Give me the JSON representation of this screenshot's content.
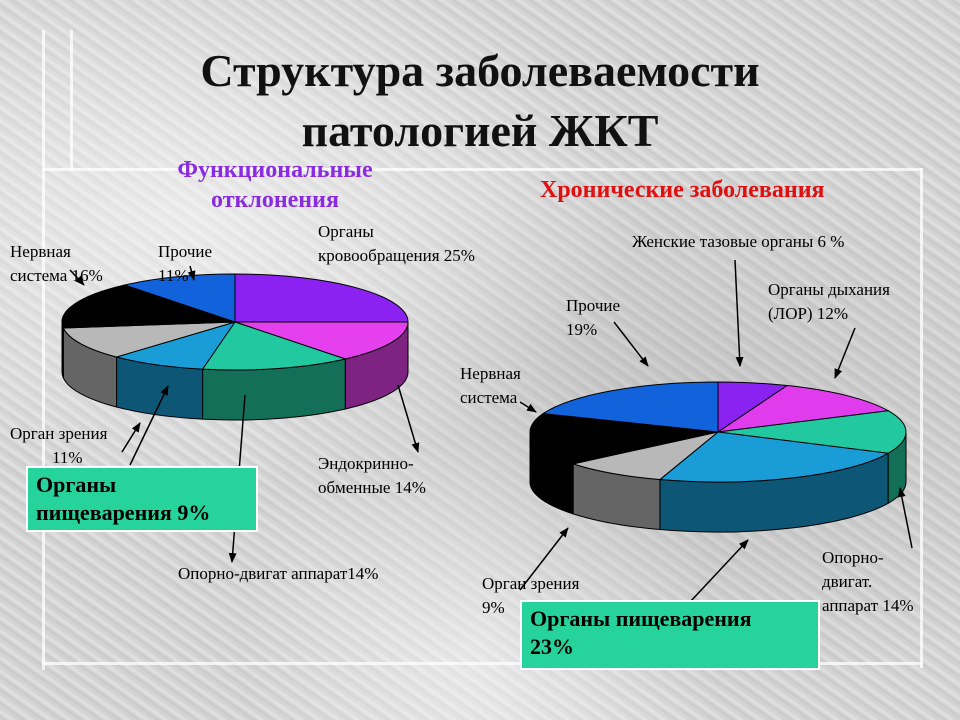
{
  "title_line1": "Структура заболеваемости",
  "title_line2": "патологией ЖКТ",
  "chart_data": [
    {
      "type": "pie",
      "title": "Функциональные отклонения",
      "title_lines": [
        "Функциональные",
        "отклонения"
      ],
      "title_color": "#8a2be2",
      "slices": [
        {
          "label": "Органы кровообращения 25%",
          "label_lines": [
            "Органы",
            "кровообращения 25%"
          ],
          "value": 25,
          "color": "#8c22f2"
        },
        {
          "label": "Эндокринно-обменные 14%",
          "label_lines": [
            "Эндокринно-",
            "обменные 14%"
          ],
          "value": 14,
          "color": "#e640ee"
        },
        {
          "label": "Опорно-двигат аппарат 14%",
          "label_lines": [
            "Опорно-двигат аппарат14%"
          ],
          "value": 14,
          "color": "#22c9a0"
        },
        {
          "label": "Органы пищеварения 9%",
          "label_lines": [
            "Органы",
            "пищеварения 9%"
          ],
          "value": 9,
          "color": "#1a9dd6"
        },
        {
          "label": "Орган зрения 11%",
          "label_lines": [
            "Орган зрения",
            "11%"
          ],
          "value": 11,
          "color": "#b8b8b8"
        },
        {
          "label": "Нервная система 16%",
          "label_lines": [
            "Нервная",
            "система 16%"
          ],
          "value": 16,
          "color": "#000000"
        },
        {
          "label": "Прочие 11%",
          "label_lines": [
            "Прочие",
            "11%"
          ],
          "value": 11,
          "color": "#1262dc"
        }
      ]
    },
    {
      "type": "pie",
      "title": "Хронические заболевания",
      "title_lines": [
        "Хронические заболевания"
      ],
      "title_color": "#e01010",
      "slices": [
        {
          "label": "Женские тазовые органы 6 %",
          "label_lines": [
            "Женские тазовые органы 6 %"
          ],
          "value": 6,
          "color": "#8a22f2"
        },
        {
          "label": "Органы дыхания (ЛОР) 12%",
          "label_lines": [
            "Органы дыхания",
            "(ЛОР) 12%"
          ],
          "value": 12,
          "color": "#e03cee"
        },
        {
          "label": "Опорно-двигат. аппарат 14%",
          "label_lines": [
            "Опорно-",
            "двигат.",
            "аппарат 14%"
          ],
          "value": 14,
          "color": "#22c9a0"
        },
        {
          "label": "Органы пищеварения 23%",
          "label_lines": [
            "Органы пищеварения",
            "23%"
          ],
          "value": 23,
          "color": "#1a9dd6"
        },
        {
          "label": "Орган зрения 9%",
          "label_lines": [
            "Орган зрения",
            "9%"
          ],
          "value": 9,
          "color": "#b8b8b8"
        },
        {
          "label": "Нервная система",
          "label_lines": [
            "Нервная",
            "система"
          ],
          "value": 17,
          "color": "#000000"
        },
        {
          "label": "Прочие 19%",
          "label_lines": [
            "Прочие",
            "19%"
          ],
          "value": 19,
          "color": "#1262dc"
        }
      ]
    }
  ]
}
